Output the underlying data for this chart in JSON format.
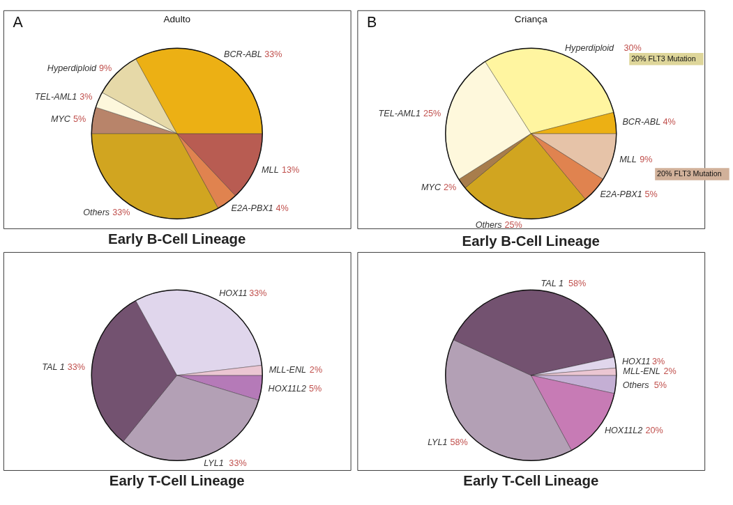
{
  "chart_data": [
    {
      "type": "pie",
      "title": "Early B-Cell Lineage",
      "annotations": [
        "A",
        "Adulto"
      ],
      "categories": [
        "MLL",
        "E2A-PBX1",
        "Others",
        "MYC",
        "TEL-AML1",
        "Hyperdiploid",
        "BCR-ABL"
      ],
      "values": [
        13,
        4,
        33,
        5,
        3,
        9,
        33
      ],
      "value_labels": [
        "13%",
        "4%",
        "33%",
        "5%",
        "3%",
        "9%",
        "33%"
      ],
      "colors": [
        "#b85c52",
        "#e0834f",
        "#d1a520",
        "#b8846a",
        "#fdf7dc",
        "#e6d9a8",
        "#ecb014"
      ]
    },
    {
      "type": "pie",
      "title": "Early B-Cell Lineage",
      "annotations": [
        "B",
        "Criança",
        "20% FLT3 Mutation",
        "20% FLT3 Mutation"
      ],
      "categories": [
        "MLL",
        "E2A-PBX1",
        "Others",
        "MYC",
        "TEL-AML1",
        "Hyperdiploid",
        "BCR-ABL"
      ],
      "values": [
        9,
        5,
        25,
        2,
        25,
        30,
        4
      ],
      "value_labels": [
        "9%",
        "5%",
        "25%",
        "2%",
        "25%",
        "30%",
        "4%"
      ],
      "colors": [
        "#e6c3a8",
        "#e0834f",
        "#d1a520",
        "#a87d4c",
        "#fef8dc",
        "#fff5a0",
        "#ecb014"
      ]
    },
    {
      "type": "pie",
      "title": "Early T-Cell Lineage",
      "categories": [
        "HOX11L2",
        "LYL1",
        "TAL 1",
        "HOX11",
        "MLL-ENL"
      ],
      "values": [
        5,
        33,
        33,
        33,
        2
      ],
      "value_labels": [
        "5%",
        "33%",
        "33%",
        "33%",
        "2%"
      ],
      "colors": [
        "#b57ab8",
        "#b3a0b5",
        "#735270",
        "#e0d6ec",
        "#ebc6d2"
      ]
    },
    {
      "type": "pie",
      "title": "Early T-Cell Lineage",
      "categories": [
        "Others",
        "HOX11L2",
        "LYL1",
        "TAL 1",
        "HOX11",
        "MLL-ENL"
      ],
      "values": [
        5,
        20,
        58,
        58,
        3,
        2
      ],
      "value_labels": [
        "5%",
        "20%",
        "58%",
        "58%",
        "3%",
        "2%"
      ],
      "colors": [
        "#c4afd4",
        "#c77bb5",
        "#b3a0b5",
        "#735270",
        "#e0d6ec",
        "#ebc6d2"
      ]
    }
  ]
}
